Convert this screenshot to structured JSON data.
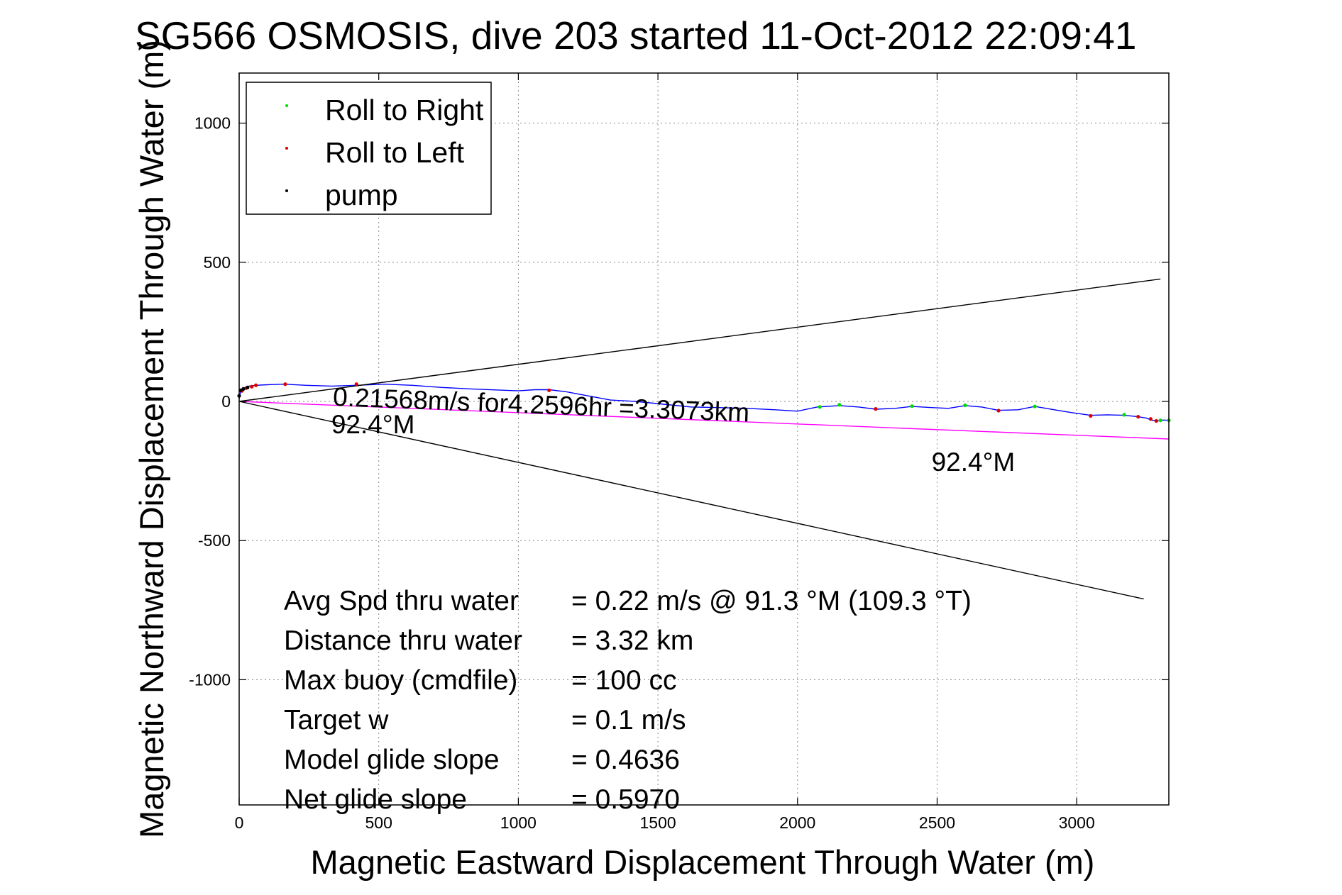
{
  "title": "SG566 OSMOSIS, dive 203 started 11-Oct-2012 22:09:41",
  "chart_data": {
    "type": "line",
    "xlabel": "Magnetic Eastward Displacement Through Water (m)",
    "ylabel": "Magnetic Northward Displacement Through Water (m)",
    "xlim": [
      0,
      3330
    ],
    "ylim": [
      -1450,
      1180
    ],
    "xticks": [
      0,
      500,
      1000,
      1500,
      2000,
      2500,
      3000
    ],
    "yticks": [
      -1000,
      -500,
      0,
      500,
      1000
    ],
    "grid": true,
    "legend_position": "top-left",
    "legend": [
      {
        "label": "Roll to Right",
        "color": "#00dd00"
      },
      {
        "label": "Roll to Left",
        "color": "#dd0000"
      },
      {
        "label": "pump",
        "color": "#000000"
      }
    ],
    "series": [
      {
        "color": "#0000ff",
        "x": [
          0,
          5,
          10,
          20,
          35,
          60,
          100,
          160,
          240,
          330,
          420,
          520,
          620,
          730,
          830,
          950,
          1000,
          1060,
          1110,
          1170,
          1250,
          1330,
          1420,
          1520,
          1620,
          1720,
          1820,
          1920,
          2000,
          2070,
          2150,
          2220,
          2280,
          2350,
          2410,
          2480,
          2540,
          2600,
          2660,
          2720,
          2790,
          2850,
          2920,
          2980,
          3050,
          3110,
          3170,
          3220,
          3250,
          3270,
          3290,
          3310,
          3330
        ],
        "y": [
          10,
          35,
          45,
          50,
          55,
          58,
          60,
          62,
          58,
          55,
          58,
          62,
          58,
          50,
          45,
          40,
          38,
          42,
          42,
          35,
          20,
          5,
          0,
          -10,
          -20,
          -22,
          -25,
          -30,
          -35,
          -20,
          -15,
          -20,
          -28,
          -25,
          -18,
          -22,
          -25,
          -15,
          -20,
          -32,
          -30,
          -18,
          -30,
          -40,
          -50,
          -48,
          -50,
          -55,
          -60,
          -68,
          -70,
          -67,
          -68
        ]
      },
      {
        "color": "#ff00ff",
        "x": [
          0,
          3330
        ],
        "y": [
          0,
          -135
        ]
      },
      {
        "color": "#000000",
        "x": [
          0,
          3300
        ],
        "y": [
          0,
          440
        ]
      },
      {
        "color": "#000000",
        "x": [
          0,
          3240
        ],
        "y": [
          0,
          -710
        ]
      }
    ],
    "markers": {
      "roll_right": {
        "color": "#00dd00",
        "x": [
          2080,
          2150,
          2410,
          2600,
          2850,
          3170,
          3300,
          3330
        ],
        "y": [
          -20,
          -12,
          -17,
          -14,
          -18,
          -48,
          -68,
          -68
        ]
      },
      "roll_left": {
        "color": "#dd0000",
        "x": [
          10,
          25,
          45,
          60,
          165,
          420,
          1110,
          2280,
          2720,
          3050,
          3220,
          3265,
          3285
        ],
        "y": [
          38,
          48,
          53,
          58,
          62,
          62,
          40,
          -27,
          -33,
          -52,
          -55,
          -63,
          -70
        ]
      },
      "pump": {
        "color": "#000000",
        "x": [
          0,
          5,
          15,
          30
        ],
        "y": [
          20,
          40,
          45,
          50
        ]
      }
    },
    "annotations": [
      {
        "text": "0.21568m/s for4.2596hr =3.3073km",
        "x": 335,
        "y": -15,
        "rotation_deg": 2.2
      },
      {
        "text": "92.4°M",
        "x": 330,
        "y": -115
      },
      {
        "text": "92.4°M",
        "x": 2480,
        "y": -250
      }
    ],
    "stats": [
      {
        "label": "Avg Spd thru water",
        "value": "=  0.22 m/s @  91.3 °M (109.3 °T)"
      },
      {
        "label": "Distance thru water",
        "value": "=  3.32 km"
      },
      {
        "label": "Max buoy (cmdfile)",
        "value": "= 100 cc"
      },
      {
        "label": "Target w",
        "value": "= 0.1 m/s"
      },
      {
        "label": "Model glide slope",
        "value": "= 0.4636"
      },
      {
        "label": "Net glide slope",
        "value": "= 0.5970"
      }
    ]
  }
}
